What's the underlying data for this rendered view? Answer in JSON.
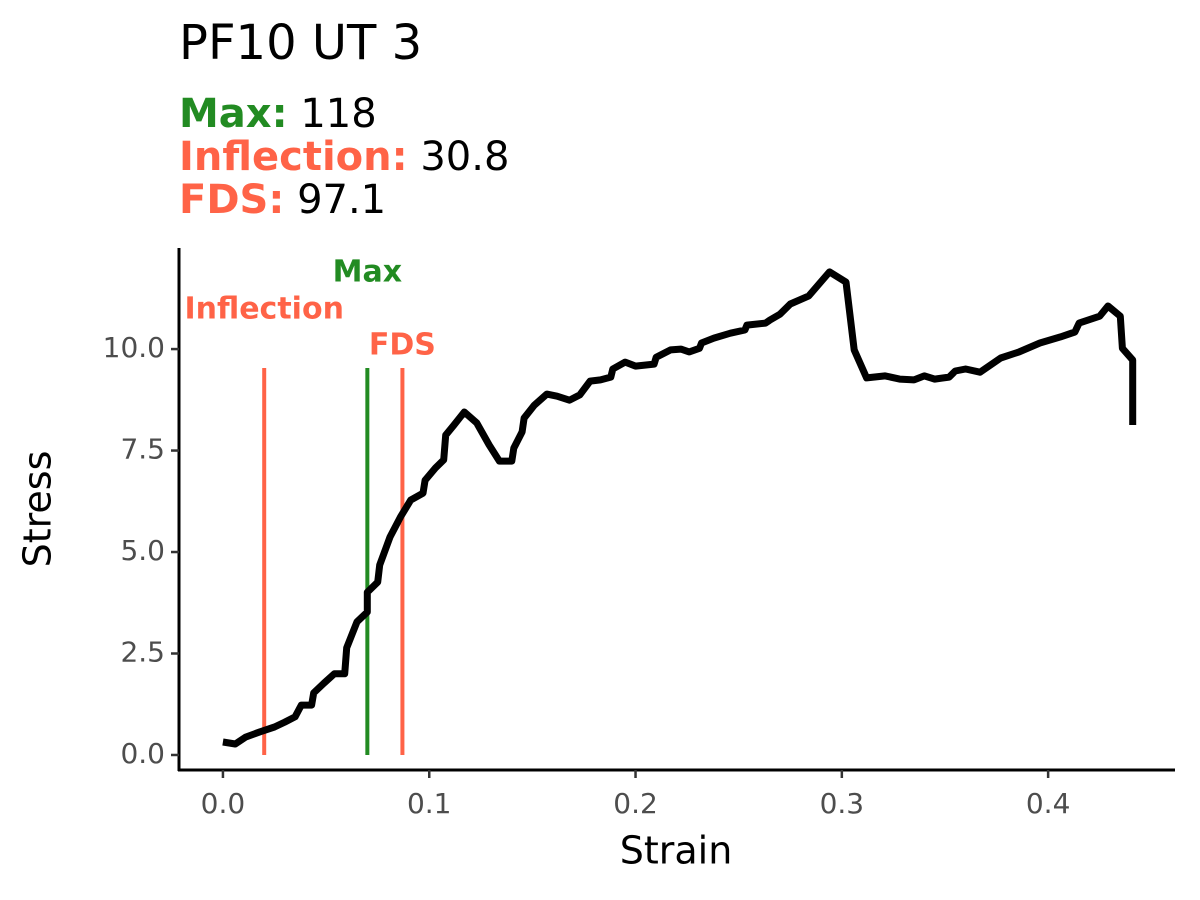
{
  "chart_data": {
    "type": "line",
    "title": "PF10 UT 3",
    "subtitle": [
      {
        "label": "Max:",
        "value": "118",
        "color": "#228b22"
      },
      {
        "label": "Inflection:",
        "value": "30.8",
        "color": "#ff6347"
      },
      {
        "label": "FDS:",
        "value": "97.1",
        "color": "#ff6347"
      }
    ],
    "x_label": "Strain",
    "y_label": "Stress",
    "color": "#000000",
    "x": [
      0.0,
      0.006,
      0.011,
      0.018,
      0.025,
      0.03,
      0.035,
      0.038,
      0.043,
      0.044,
      0.049,
      0.054,
      0.059,
      0.06,
      0.065,
      0.07,
      0.07,
      0.075,
      0.076,
      0.081,
      0.086,
      0.091,
      0.097,
      0.098,
      0.103,
      0.107,
      0.108,
      0.112,
      0.117,
      0.123,
      0.129,
      0.134,
      0.14,
      0.141,
      0.145,
      0.146,
      0.151,
      0.157,
      0.162,
      0.168,
      0.173,
      0.178,
      0.183,
      0.188,
      0.189,
      0.195,
      0.2,
      0.209,
      0.21,
      0.217,
      0.222,
      0.226,
      0.231,
      0.232,
      0.238,
      0.246,
      0.253,
      0.254,
      0.263,
      0.265,
      0.27,
      0.275,
      0.284,
      0.294,
      0.302,
      0.306,
      0.312,
      0.321,
      0.328,
      0.335,
      0.34,
      0.345,
      0.352,
      0.355,
      0.36,
      0.367,
      0.377,
      0.386,
      0.396,
      0.406,
      0.413,
      0.415,
      0.425,
      0.429,
      0.435,
      0.436,
      0.441,
      0.441
    ],
    "values": [
      0.32,
      0.27,
      0.44,
      0.57,
      0.69,
      0.81,
      0.94,
      1.23,
      1.23,
      1.53,
      1.77,
      2.0,
      2.0,
      2.64,
      3.28,
      3.52,
      4.01,
      4.26,
      4.68,
      5.37,
      5.86,
      6.28,
      6.45,
      6.77,
      7.07,
      7.27,
      7.88,
      8.13,
      8.45,
      8.18,
      7.64,
      7.24,
      7.24,
      7.56,
      7.96,
      8.3,
      8.62,
      8.89,
      8.84,
      8.74,
      8.87,
      9.21,
      9.24,
      9.31,
      9.51,
      9.68,
      9.58,
      9.63,
      9.8,
      9.98,
      10.0,
      9.93,
      10.02,
      10.15,
      10.27,
      10.39,
      10.47,
      10.59,
      10.64,
      10.71,
      10.86,
      11.11,
      11.31,
      11.9,
      11.65,
      9.98,
      9.29,
      9.34,
      9.26,
      9.24,
      9.34,
      9.26,
      9.31,
      9.46,
      9.51,
      9.43,
      9.78,
      9.93,
      10.15,
      10.3,
      10.42,
      10.64,
      10.81,
      11.06,
      10.81,
      10.02,
      9.73,
      8.13
    ],
    "vlines": [
      {
        "label": "Inflection",
        "x": 0.02,
        "color": "#ff6347"
      },
      {
        "label": "Max",
        "x": 0.07,
        "color": "#228b22"
      },
      {
        "label": "FDS",
        "x": 0.087,
        "color": "#ff6347"
      }
    ],
    "xlim": [
      -0.0213,
      0.4615
    ],
    "ylim": [
      -0.37,
      12.49
    ],
    "xticks": [
      {
        "value": 0,
        "label": "0.0"
      },
      0.1,
      0.2,
      0.3,
      0.4
    ],
    "yticks": [
      {
        "value": 0,
        "label": "0.0"
      },
      2.5,
      {
        "value": 5,
        "label": "5.0"
      },
      7.5,
      {
        "value": 10,
        "label": "10.0"
      }
    ]
  }
}
